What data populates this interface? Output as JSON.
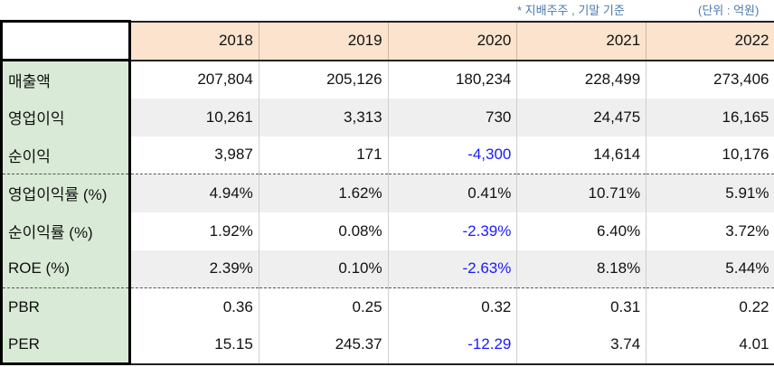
{
  "notes": {
    "basis": "* 지배주주 , 기말 기준",
    "unit": "(단위 : 억원)"
  },
  "table": {
    "years": [
      "2018",
      "2019",
      "2020",
      "2021",
      "2022"
    ],
    "rows": [
      {
        "label": "매출액",
        "values": [
          "207,804",
          "205,126",
          "180,234",
          "228,499",
          "273,406"
        ]
      },
      {
        "label": "영업이익",
        "values": [
          "10,261",
          "3,313",
          "730",
          "24,475",
          "16,165"
        ]
      },
      {
        "label": "순이익",
        "values": [
          "3,987",
          "171",
          "-4,300",
          "14,614",
          "10,176"
        ]
      },
      {
        "label": "영업이익률 (%)",
        "values": [
          "4.94%",
          "1.62%",
          "0.41%",
          "10.71%",
          "5.91%"
        ]
      },
      {
        "label": "순이익률 (%)",
        "values": [
          "1.92%",
          "0.08%",
          "-2.39%",
          "6.40%",
          "3.72%"
        ]
      },
      {
        "label": "ROE (%)",
        "values": [
          "2.39%",
          "0.10%",
          "-2.63%",
          "8.18%",
          "5.44%"
        ]
      },
      {
        "label": "PBR",
        "values": [
          "0.36",
          "0.25",
          "0.32",
          "0.31",
          "0.22"
        ]
      },
      {
        "label": "PER",
        "values": [
          "15.15",
          "245.37",
          "-12.29",
          "3.74",
          "4.01"
        ]
      }
    ]
  },
  "colors": {
    "header_bg": "#fbe3cd",
    "label_bg": "#d9ead6",
    "stripe_bg": "#efefef",
    "negative_text": "#1a1aff",
    "note_text": "#4a7aa8"
  }
}
